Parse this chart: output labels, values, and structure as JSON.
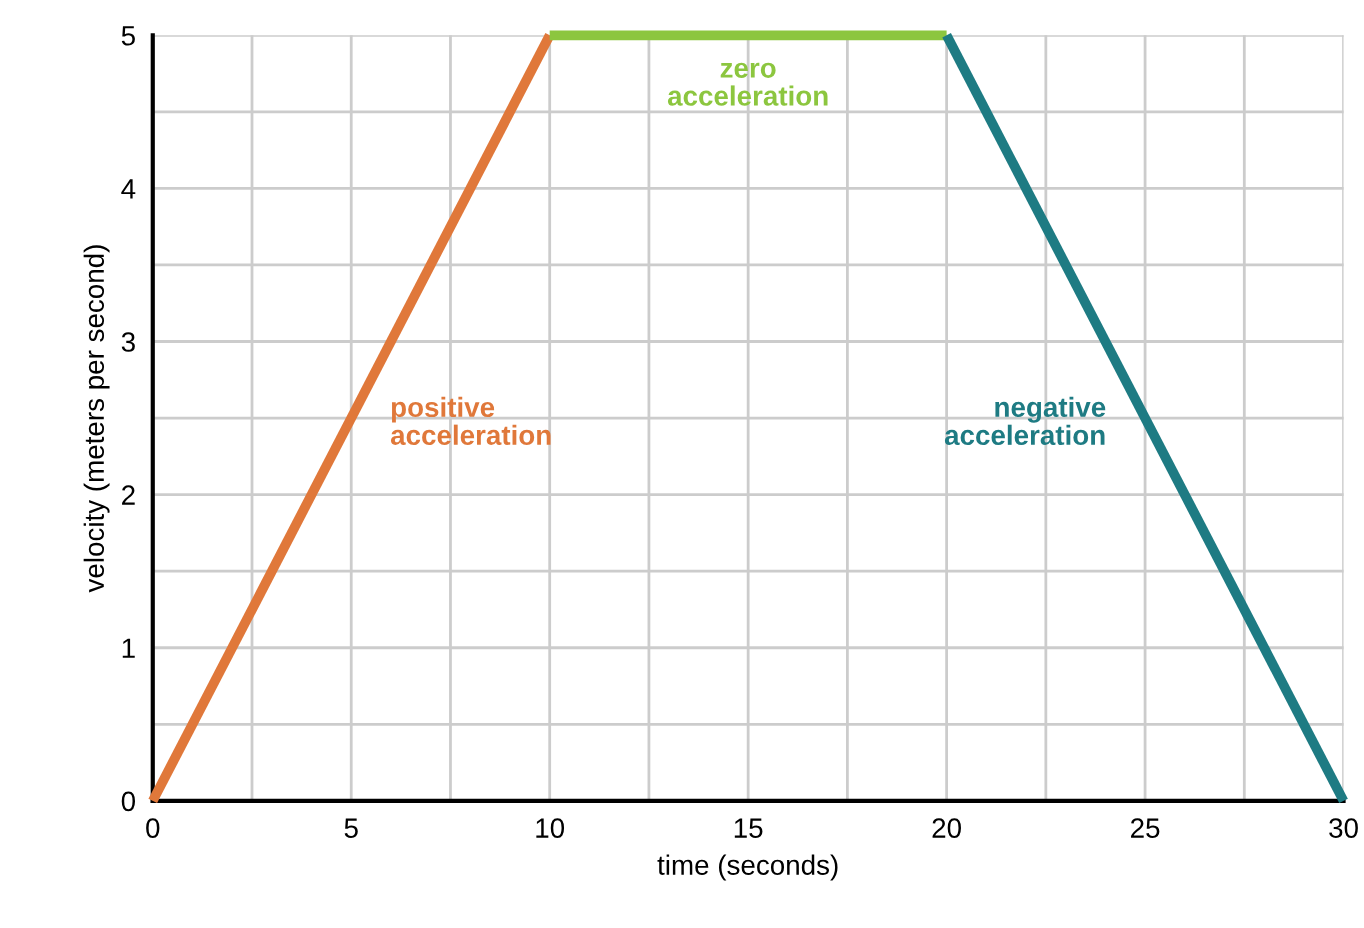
{
  "chart_data": {
    "type": "line",
    "xlabel": "time (seconds)",
    "ylabel": "velocity (meters per second)",
    "series": [
      {
        "name": "positive acceleration",
        "color": "#e0783a",
        "x": [
          0,
          10
        ],
        "values": [
          0,
          5
        ]
      },
      {
        "name": "zero acceleration",
        "color": "#8cc63f",
        "x": [
          10,
          20
        ],
        "values": [
          5,
          5
        ]
      },
      {
        "name": "negative acceleration",
        "color": "#1e7b83",
        "x": [
          20,
          30
        ],
        "values": [
          5,
          0
        ]
      }
    ],
    "xlim": [
      0,
      30
    ],
    "ylim": [
      0,
      5
    ],
    "xticks": [
      0,
      {
        "value": 2.5,
        "label": null
      },
      5,
      {
        "value": 7.5,
        "label": null
      },
      10,
      {
        "value": 12.5,
        "label": null
      },
      15,
      {
        "value": 17.5,
        "label": null
      },
      20,
      {
        "value": 22.5,
        "label": null
      },
      25,
      {
        "value": 27.5,
        "label": null
      },
      30
    ],
    "yticks": [
      0,
      {
        "value": 0.5,
        "label": null
      },
      1,
      {
        "value": 1.5,
        "label": null
      },
      2,
      {
        "value": 2.5,
        "label": null
      },
      3,
      {
        "value": 3.5,
        "label": null
      },
      4,
      {
        "value": 4.5,
        "label": null
      },
      5
    ],
    "grid": true,
    "legend": false,
    "marker": "none",
    "line_style": "solid"
  }
}
